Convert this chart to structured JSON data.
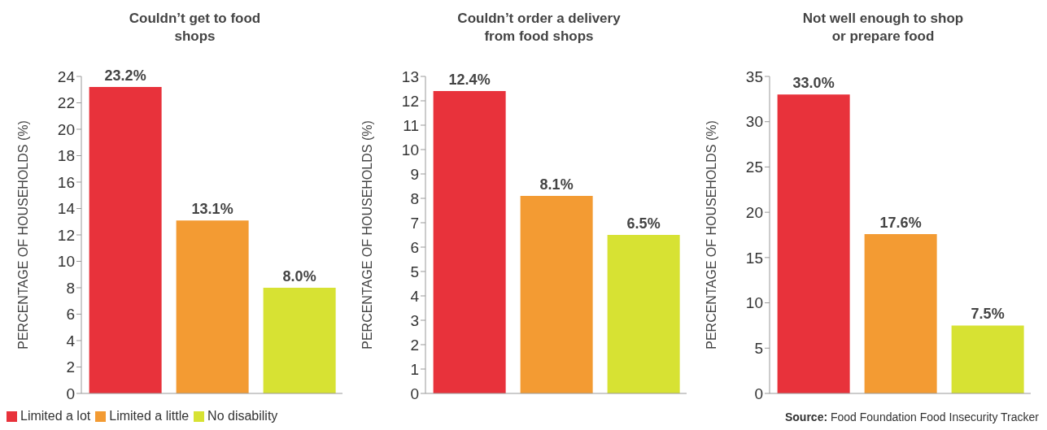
{
  "chart_data": [
    {
      "type": "bar",
      "title": "Couldn’t get to food shops",
      "ylabel": "PERCENTAGE OF HOUSEHOLDS (%)",
      "categories": [
        null
      ],
      "ylim": [
        0,
        24
      ],
      "yticks": [
        0,
        2,
        4,
        6,
        8,
        10,
        12,
        14,
        16,
        18,
        20,
        22,
        24
      ],
      "grid": false,
      "legend": "bottom left",
      "series": [
        {
          "name": "Limited a lot",
          "color": "#e8323b",
          "values": [
            23.2
          ],
          "value_labels": [
            "23.2%"
          ]
        },
        {
          "name": "Limited a little",
          "color": "#f39b33",
          "values": [
            13.1
          ],
          "value_labels": [
            "13.1%"
          ]
        },
        {
          "name": "No disability",
          "color": "#d7e233",
          "values": [
            8.0
          ],
          "value_labels": [
            "8.0%"
          ]
        }
      ]
    },
    {
      "type": "bar",
      "title": "Couldn’t order a delivery from food shops",
      "ylabel": "PERCENTAGE OF HOUSEHOLDS (%)",
      "categories": [
        null
      ],
      "ylim": [
        0,
        13
      ],
      "yticks": [
        0,
        1,
        2,
        3,
        4,
        5,
        6,
        7,
        8,
        9,
        10,
        11,
        12,
        13
      ],
      "grid": false,
      "series": [
        {
          "color": "#e8323b",
          "values": [
            12.4
          ],
          "value_labels": [
            "12.4%"
          ]
        },
        {
          "color": "#f39b33",
          "values": [
            8.1
          ],
          "value_labels": [
            "8.1%"
          ]
        },
        {
          "color": "#d7e233",
          "values": [
            6.5
          ],
          "value_labels": [
            "6.5%"
          ]
        }
      ]
    },
    {
      "type": "bar",
      "title": "Not well enough to shop or prepare food",
      "ylabel": "PERCENTAGE OF HOUSEHOLDS (%)",
      "categories": [
        null
      ],
      "ylim": [
        0,
        35
      ],
      "yticks": [
        0,
        5,
        10,
        15,
        20,
        25,
        30,
        35
      ],
      "grid": false,
      "annotations": [
        "Source: Food Foundation Food Insecurity Tracker"
      ],
      "series": [
        {
          "color": "#e8323b",
          "values": [
            33.0
          ],
          "value_labels": [
            "33.0%"
          ]
        },
        {
          "color": "#f39b33",
          "values": [
            17.6
          ],
          "value_labels": [
            "17.6%"
          ]
        },
        {
          "color": "#d7e233",
          "values": [
            7.5
          ],
          "value_labels": [
            "7.5%"
          ]
        }
      ]
    }
  ]
}
